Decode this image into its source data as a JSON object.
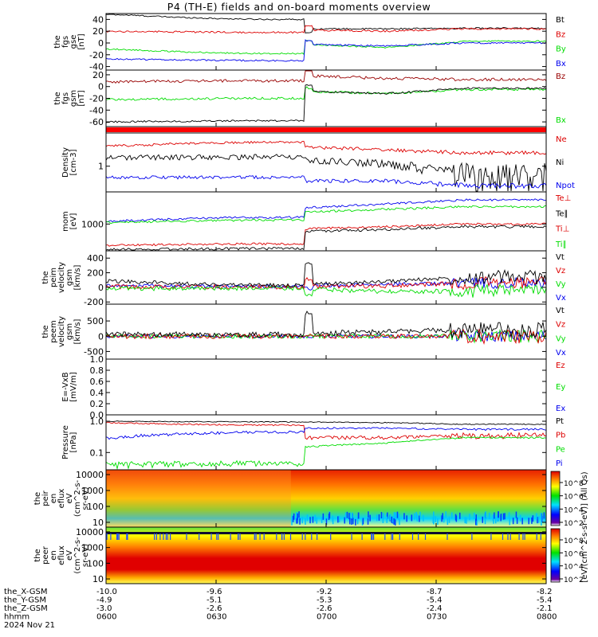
{
  "title": "P4 (TH-E) fields and on-board moments overview",
  "colors": {
    "black": "#000000",
    "red": "#dd0000",
    "green": "#00dd00",
    "blue": "#0000ee",
    "darkred": "#990000",
    "heat_red": "#dd0000"
  },
  "panels": [
    {
      "ylabel": [
        "the",
        "fgs",
        "gse",
        "[nT]"
      ],
      "ticks": [
        "40",
        "20",
        "0",
        "-20",
        "-40"
      ],
      "tickv": [
        40,
        20,
        0,
        -20,
        -40
      ],
      "ylim": [
        -46,
        50
      ],
      "legend": [
        {
          "text": "Bt",
          "color": "black"
        },
        {
          "text": "Bz",
          "color": "red"
        },
        {
          "text": "By",
          "color": "green"
        },
        {
          "text": "Bx",
          "color": "blue"
        }
      ]
    },
    {
      "ylabel": [
        "the",
        "fgs",
        "gsm",
        "[nT]"
      ],
      "ticks": [
        "20",
        "0",
        "-20",
        "-40",
        "-60"
      ],
      "tickv": [
        20,
        0,
        -20,
        -40,
        -60
      ],
      "ylim": [
        -68,
        28
      ],
      "legend": [
        {
          "text": "Bz",
          "color": "darkred"
        },
        {
          "text": "Bx",
          "color": "green"
        }
      ]
    },
    {
      "ylabel": [],
      "ticks": [],
      "legend": []
    },
    {
      "ylabel": [
        "Density",
        "[cm-3]"
      ],
      "ticks": [
        "1"
      ],
      "tickv": [
        1
      ],
      "ylim": [
        0.2,
        8
      ],
      "log": true,
      "legend": [
        {
          "text": "Ne",
          "color": "red"
        },
        {
          "text": "Ni",
          "color": "black"
        },
        {
          "text": "Npot",
          "color": "blue"
        }
      ]
    },
    {
      "ylabel": [
        "mom",
        "[eV]"
      ],
      "ticks": [
        "1000"
      ],
      "tickv": [
        1000
      ],
      "ylim": [
        0,
        2200
      ],
      "legend": [
        {
          "text": "Te⊥",
          "color": "red"
        },
        {
          "text": "Te∥",
          "color": "black"
        },
        {
          "text": "Ti⊥",
          "color": "red"
        },
        {
          "text": "Ti∥",
          "color": "green"
        }
      ]
    },
    {
      "ylabel": [
        "the",
        "peim",
        "velocity",
        "gsm",
        "[km/s]"
      ],
      "ticks": [
        "400",
        "200",
        "0",
        "-200"
      ],
      "tickv": [
        400,
        200,
        0,
        -200
      ],
      "ylim": [
        -230,
        500
      ],
      "legend": [
        {
          "text": "Vt",
          "color": "black"
        },
        {
          "text": "Vz",
          "color": "red"
        },
        {
          "text": "Vy",
          "color": "green"
        },
        {
          "text": "Vx",
          "color": "blue"
        }
      ]
    },
    {
      "ylabel": [
        "the",
        "peem",
        "velocity",
        "gsm",
        "[km/s]"
      ],
      "ticks": [
        "500",
        "0",
        "-500"
      ],
      "tickv": [
        500,
        0,
        -500
      ],
      "ylim": [
        -750,
        1050
      ],
      "legend": [
        {
          "text": "Vt",
          "color": "black"
        },
        {
          "text": "Vz",
          "color": "red"
        },
        {
          "text": "Vy",
          "color": "green"
        },
        {
          "text": "Vx",
          "color": "blue"
        }
      ]
    },
    {
      "ylabel": [
        "E=-VxB",
        "[mV/m]"
      ],
      "ticks": [
        "1.0",
        "0.8",
        "0.6",
        "0.4",
        "0.2",
        "0.0"
      ],
      "tickv": [
        1,
        0.8,
        0.6,
        0.4,
        0.2,
        0
      ],
      "ylim": [
        0,
        1
      ],
      "legend": [
        {
          "text": "Ez",
          "color": "red"
        },
        {
          "text": "Ey",
          "color": "green"
        },
        {
          "text": "Ex",
          "color": "blue"
        }
      ]
    },
    {
      "ylabel": [
        "Pressure",
        "[nPa]"
      ],
      "ticks": [
        "1.0",
        "0.1"
      ],
      "tickv": [
        1,
        0.1
      ],
      "ylim": [
        0.028,
        1.6
      ],
      "log": true,
      "legend": [
        {
          "text": "Pt",
          "color": "black"
        },
        {
          "text": "Pb",
          "color": "red"
        },
        {
          "text": "Pe",
          "color": "green"
        },
        {
          "text": "Pi",
          "color": "blue"
        }
      ]
    },
    {
      "ylabel": [
        "the",
        "peir",
        "en",
        "eflux",
        "eV",
        "(cm^2-s-",
        "sr-eV)"
      ],
      "ticks": [
        "10000",
        "1000",
        "100",
        "10"
      ],
      "tickv": [
        10000,
        1000,
        100,
        10
      ],
      "ylim": [
        5,
        20000
      ],
      "log": true,
      "legend": []
    },
    {
      "ylabel": [
        "the",
        "peer",
        "en",
        "eflux",
        "eV",
        "(cm^2-s-",
        "sr-eV)"
      ],
      "ticks": [
        "10000",
        "1000",
        "100",
        "10"
      ],
      "tickv": [
        10000,
        1000,
        100,
        10
      ],
      "ylim": [
        5,
        20000
      ],
      "log": true,
      "legend": []
    }
  ],
  "colorbar": {
    "label": "[eV/(cm^2-s-sr-eV)] (All Qs)",
    "ticks_top": [
      "10^8",
      "10^6",
      "10^4",
      "10^2"
    ],
    "ticks_bottom": [
      "10^8",
      "10^6",
      "10^4",
      "10^2"
    ]
  },
  "xaxis": {
    "rows": [
      {
        "label": "the_X-GSM",
        "values": [
          "-10.0",
          "-9.6",
          "-9.2",
          "-8.7",
          "-8.2"
        ]
      },
      {
        "label": "the_Y-GSM",
        "values": [
          "-4.9",
          "-5.1",
          "-5.3",
          "-5.4",
          "-5.4"
        ]
      },
      {
        "label": "the_Z-GSM",
        "values": [
          "-3.0",
          "-2.6",
          "-2.6",
          "-2.4",
          "-2.1"
        ]
      },
      {
        "label": "hhmm",
        "values": [
          "0600",
          "0630",
          "0700",
          "0730",
          "0800"
        ]
      }
    ],
    "date": "2024 Nov 21"
  },
  "chart_data": {
    "type": "line",
    "title": "P4 (TH-E) fields and on-board moments overview",
    "x": [
      "0600",
      "0630",
      "0700",
      "0730",
      "0800"
    ],
    "series": [
      {
        "name": "Bt (fgs gse)",
        "values": [
          49,
          40,
          24,
          24,
          25
        ]
      },
      {
        "name": "Bz (fgs gse)",
        "values": [
          20,
          18,
          22,
          20,
          24
        ]
      },
      {
        "name": "By (fgs gse)",
        "values": [
          -10,
          -18,
          -2,
          -8,
          3
        ]
      },
      {
        "name": "Bx (fgs gse)",
        "values": [
          -27,
          -30,
          -2,
          -5,
          0
        ]
      },
      {
        "name": "Bz (fgs gsm)",
        "values": [
          8,
          10,
          18,
          14,
          12
        ]
      },
      {
        "name": "Bx (fgs gsm)",
        "values": [
          -22,
          -20,
          -8,
          -12,
          -5
        ]
      },
      {
        "name": "Ne",
        "values": [
          3.5,
          4.5,
          3.3,
          2.8,
          2.3
        ]
      },
      {
        "name": "Ni",
        "values": [
          1.7,
          1.8,
          1.5,
          1.2,
          0.6
        ]
      },
      {
        "name": "Npot",
        "values": [
          0.5,
          0.5,
          0.4,
          0.4,
          0.3
        ]
      },
      {
        "name": "Te⊥",
        "values": [
          200,
          250,
          800,
          900,
          1100
        ]
      },
      {
        "name": "Te∥",
        "values": [
          40,
          60,
          700,
          850,
          950
        ]
      },
      {
        "name": "Ti⊥",
        "values": [
          1200,
          1300,
          1700,
          1800,
          1900
        ]
      },
      {
        "name": "Ti∥",
        "values": [
          1100,
          1150,
          1500,
          1600,
          1700
        ]
      },
      {
        "name": "Vt (peim)",
        "values": [
          60,
          20,
          30,
          60,
          120
        ]
      },
      {
        "name": "Vz (peim)",
        "values": [
          10,
          5,
          10,
          20,
          60
        ]
      },
      {
        "name": "Vy (peim)",
        "values": [
          -20,
          -10,
          -20,
          -60,
          -50
        ]
      },
      {
        "name": "Vx (peim)",
        "values": [
          0,
          0,
          0,
          30,
          30
        ]
      },
      {
        "name": "Pt",
        "values": [
          1.0,
          0.95,
          0.95,
          0.9,
          0.8
        ]
      },
      {
        "name": "Pb",
        "values": [
          0.9,
          0.8,
          0.3,
          0.3,
          0.35
        ]
      },
      {
        "name": "Pe",
        "values": [
          0.04,
          0.05,
          0.15,
          0.2,
          0.3
        ]
      },
      {
        "name": "Pi",
        "values": [
          0.3,
          0.45,
          0.6,
          0.6,
          0.55
        ]
      }
    ]
  }
}
